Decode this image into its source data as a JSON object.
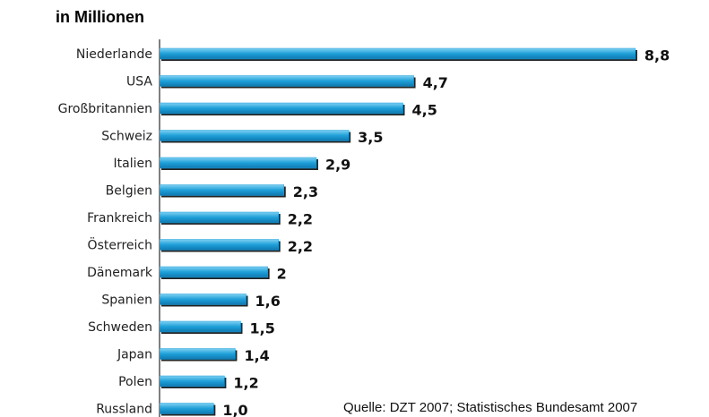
{
  "chart_data": {
    "type": "barh",
    "title": "in Millionen",
    "source": "Quelle: DZT 2007; Statistisches Bundesamt 2007",
    "categories": [
      "Niederlande",
      "USA",
      "Großbritannien",
      "Schweiz",
      "Italien",
      "Belgien",
      "Frankreich",
      "Österreich",
      "Dänemark",
      "Spanien",
      "Schweden",
      "Japan",
      "Polen",
      "Russland"
    ],
    "values": [
      8.8,
      4.7,
      4.5,
      3.5,
      2.9,
      2.3,
      2.2,
      2.2,
      2,
      1.6,
      1.5,
      1.4,
      1.2,
      1.0
    ],
    "value_labels": [
      "8,8",
      "4,7",
      "4,5",
      "3,5",
      "2,9",
      "2,3",
      "2,2",
      "2,2",
      "2",
      "1,6",
      "1,5",
      "1,4",
      "1,2",
      "1,0"
    ],
    "color": "#1e9fd8",
    "xlim": [
      0,
      9
    ]
  }
}
